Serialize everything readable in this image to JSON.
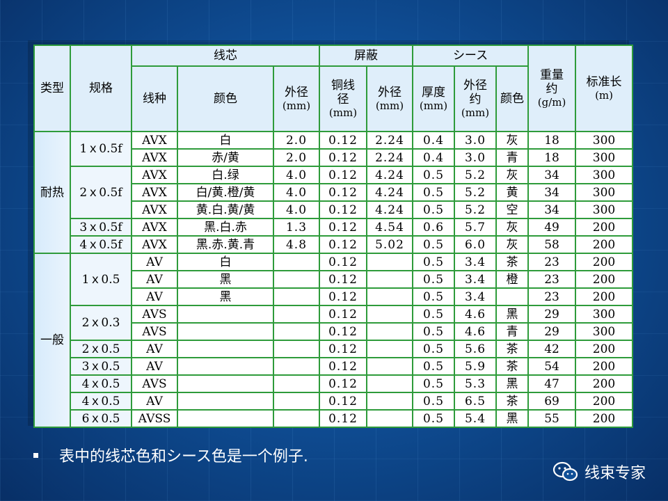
{
  "headers": {
    "type": "类型",
    "spec": "规格",
    "core_group": "线芯",
    "shield_group": "屏蔽",
    "sheath_group": "シース",
    "weight": "重量约",
    "weight_unit": "(g/m)",
    "std_length": "标准长",
    "std_length_unit": "(m)",
    "core_kind": "线种",
    "core_color": "颜色",
    "core_od": "外径",
    "core_od_unit": "(mm)",
    "shield_cu": "铜线径",
    "shield_cu_unit": "(mm)",
    "shield_od": "外径",
    "shield_od_unit": "(mm)",
    "sheath_thick": "厚度",
    "sheath_thick_unit": "(mm)",
    "sheath_od": "外径约",
    "sheath_od_unit": "(mm)",
    "sheath_color": "颜色"
  },
  "rows": [
    {
      "type": "耐热",
      "spec": "1ｘ0.5f",
      "kind": "AVX",
      "color": "白",
      "core_od": "2.0",
      "cu": "0.12",
      "shield_od": "2.24",
      "thick": "0.4",
      "sheath_od": "3.0",
      "sheath_color": "灰",
      "weight": "18",
      "length": "300"
    },
    {
      "kind": "AVX",
      "color": "赤/黄",
      "core_od": "2.0",
      "cu": "0.12",
      "shield_od": "2.24",
      "thick": "0.4",
      "sheath_od": "3.0",
      "sheath_color": "青",
      "weight": "18",
      "length": "300"
    },
    {
      "spec": "2ｘ0.5f",
      "kind": "AVX",
      "color": "白.绿",
      "core_od": "4.0",
      "cu": "0.12",
      "shield_od": "4.24",
      "thick": "0.5",
      "sheath_od": "5.2",
      "sheath_color": "灰",
      "weight": "34",
      "length": "300"
    },
    {
      "kind": "AVX",
      "color": "白/黄.橙/黄",
      "core_od": "4.0",
      "cu": "0.12",
      "shield_od": "4.24",
      "thick": "0.5",
      "sheath_od": "5.2",
      "sheath_color": "黄",
      "weight": "34",
      "length": "300"
    },
    {
      "kind": "AVX",
      "color": "黄.白.黄/黄",
      "core_od": "4.0",
      "cu": "0.12",
      "shield_od": "4.24",
      "thick": "0.5",
      "sheath_od": "5.2",
      "sheath_color": "空",
      "weight": "34",
      "length": "300"
    },
    {
      "spec": "3ｘ0.5f",
      "kind": "AVX",
      "color": "黑.白.赤",
      "core_od": "1.3",
      "cu": "0.12",
      "shield_od": "4.54",
      "thick": "0.6",
      "sheath_od": "5.7",
      "sheath_color": "灰",
      "weight": "49",
      "length": "200"
    },
    {
      "spec": "4ｘ0.5f",
      "kind": "AVX",
      "color": "黑.赤.黄.青",
      "core_od": "4.8",
      "cu": "0.12",
      "shield_od": "5.02",
      "thick": "0.5",
      "sheath_od": "6.0",
      "sheath_color": "灰",
      "weight": "58",
      "length": "200"
    },
    {
      "type": "一般",
      "spec": "1ｘ0.5",
      "kind": "AV",
      "color": "白",
      "core_od": "",
      "cu": "0.12",
      "shield_od": "",
      "thick": "0.5",
      "sheath_od": "3.4",
      "sheath_color": "茶",
      "weight": "23",
      "length": "200"
    },
    {
      "kind": "AV",
      "color": "黑",
      "core_od": "",
      "cu": "0.12",
      "shield_od": "",
      "thick": "0.5",
      "sheath_od": "3.4",
      "sheath_color": "橙",
      "weight": "23",
      "length": "200"
    },
    {
      "kind": "AV",
      "color": "黑",
      "core_od": "",
      "cu": "0.12",
      "shield_od": "",
      "thick": "0.5",
      "sheath_od": "3.4",
      "sheath_color": "",
      "weight": "23",
      "length": "200"
    },
    {
      "spec": "2ｘ0.3",
      "kind": "AVS",
      "color": "",
      "core_od": "",
      "cu": "0.12",
      "shield_od": "",
      "thick": "0.5",
      "sheath_od": "4.6",
      "sheath_color": "黑",
      "weight": "29",
      "length": "300"
    },
    {
      "kind": "AVS",
      "color": "",
      "core_od": "",
      "cu": "0.12",
      "shield_od": "",
      "thick": "0.5",
      "sheath_od": "4.6",
      "sheath_color": "青",
      "weight": "29",
      "length": "300"
    },
    {
      "spec": "2ｘ0.5",
      "kind": "AV",
      "color": "",
      "core_od": "",
      "cu": "0.12",
      "shield_od": "",
      "thick": "0.5",
      "sheath_od": "5.6",
      "sheath_color": "茶",
      "weight": "42",
      "length": "200"
    },
    {
      "spec": "3ｘ0.5",
      "kind": "AV",
      "color": "",
      "core_od": "",
      "cu": "0.12",
      "shield_od": "",
      "thick": "0.5",
      "sheath_od": "5.9",
      "sheath_color": "茶",
      "weight": "54",
      "length": "200"
    },
    {
      "spec": "4ｘ0.5",
      "kind": "AVS",
      "color": "",
      "core_od": "",
      "cu": "0.12",
      "shield_od": "",
      "thick": "0.5",
      "sheath_od": "5.3",
      "sheath_color": "黑",
      "weight": "47",
      "length": "200"
    },
    {
      "spec": "4ｘ0.5",
      "kind": "AV",
      "color": "",
      "core_od": "",
      "cu": "0.12",
      "shield_od": "",
      "thick": "0.5",
      "sheath_od": "6.5",
      "sheath_color": "茶",
      "weight": "69",
      "length": "200"
    },
    {
      "spec": "6ｘ0.5",
      "kind": "AVSS",
      "color": "",
      "core_od": "",
      "cu": "0.12",
      "shield_od": "",
      "thick": "0.5",
      "sheath_od": "5.4",
      "sheath_color": "黑",
      "weight": "55",
      "length": "200"
    }
  ],
  "note": "表中的线芯色和シース色是一个例子.",
  "brand": {
    "name": "线束专家",
    "icon": "wechat-icon"
  }
}
